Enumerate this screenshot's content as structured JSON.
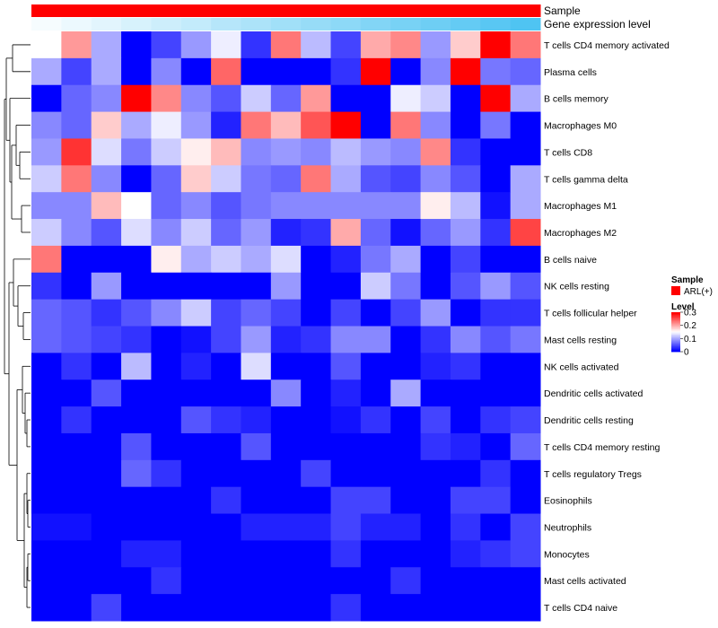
{
  "chart_data": {
    "type": "heatmap",
    "title": "",
    "xlabel": "",
    "ylabel": "",
    "annotation_tracks": [
      {
        "name": "Sample",
        "kind": "categorical",
        "color": "#ff0000"
      },
      {
        "name": "Gene expression level",
        "kind": "gradient",
        "colors": [
          "#ffffff",
          "#4fc4f2"
        ]
      }
    ],
    "rows": [
      "T cells CD4 memory activated",
      "Plasma cells",
      "B cells memory",
      "Macrophages M0",
      "T cells CD8",
      "T cells gamma delta",
      "Macrophages M1",
      "Macrophages M2",
      "B cells naive",
      "NK cells resting",
      "T cells follicular helper",
      "Mast cells resting",
      "NK cells activated",
      "Dendritic cells activated",
      "Dendritic cells resting",
      "T cells CD4 memory resting",
      "T cells regulatory  Tregs",
      "Eosinophils",
      "Neutrophils",
      "Monocytes",
      "Mast cells activated",
      "T cells CD4 naive"
    ],
    "values": [
      [
        0.15,
        0.21,
        0.1,
        0.0,
        0.04,
        0.09,
        0.14,
        0.03,
        0.23,
        0.11,
        0.04,
        0.2,
        0.22,
        0.09,
        0.18,
        0.3,
        0.23
      ],
      [
        0.1,
        0.04,
        0.1,
        0.0,
        0.08,
        0.0,
        0.24,
        0.0,
        0.0,
        0.0,
        0.03,
        0.3,
        0.0,
        0.08,
        0.3,
        0.07,
        0.06
      ],
      [
        0.0,
        0.06,
        0.08,
        0.3,
        0.22,
        0.08,
        0.05,
        0.12,
        0.06,
        0.21,
        0.0,
        0.0,
        0.14,
        0.12,
        0.0,
        0.3,
        0.1
      ],
      [
        0.08,
        0.06,
        0.18,
        0.1,
        0.14,
        0.09,
        0.02,
        0.23,
        0.19,
        0.25,
        0.3,
        0.0,
        0.23,
        0.08,
        0.0,
        0.07,
        0.0
      ],
      [
        0.09,
        0.27,
        0.13,
        0.07,
        0.12,
        0.16,
        0.19,
        0.08,
        0.09,
        0.08,
        0.11,
        0.09,
        0.08,
        0.22,
        0.03,
        0.0,
        0.0
      ],
      [
        0.12,
        0.23,
        0.08,
        0.0,
        0.06,
        0.18,
        0.12,
        0.07,
        0.06,
        0.23,
        0.1,
        0.05,
        0.04,
        0.08,
        0.05,
        0.0,
        0.1
      ],
      [
        0.08,
        0.08,
        0.19,
        0.15,
        0.06,
        0.08,
        0.05,
        0.07,
        0.08,
        0.08,
        0.08,
        0.08,
        0.08,
        0.16,
        0.11,
        0.01,
        0.1
      ],
      [
        0.12,
        0.08,
        0.05,
        0.13,
        0.08,
        0.12,
        0.06,
        0.09,
        0.02,
        0.03,
        0.2,
        0.06,
        0.01,
        0.06,
        0.09,
        0.03,
        0.26
      ],
      [
        0.23,
        0.0,
        0.0,
        0.0,
        0.16,
        0.1,
        0.12,
        0.1,
        0.13,
        0.0,
        0.02,
        0.07,
        0.1,
        0.0,
        0.04,
        0.0,
        0.0
      ],
      [
        0.03,
        0.0,
        0.09,
        0.0,
        0.0,
        0.0,
        0.0,
        0.0,
        0.09,
        0.0,
        0.0,
        0.12,
        0.07,
        0.0,
        0.05,
        0.09,
        0.05
      ],
      [
        0.06,
        0.05,
        0.03,
        0.05,
        0.08,
        0.12,
        0.04,
        0.06,
        0.04,
        0.0,
        0.04,
        0.0,
        0.04,
        0.09,
        0.0,
        0.03,
        0.03
      ],
      [
        0.06,
        0.05,
        0.04,
        0.03,
        0.0,
        0.01,
        0.04,
        0.09,
        0.02,
        0.03,
        0.08,
        0.08,
        0.0,
        0.03,
        0.08,
        0.05,
        0.07
      ],
      [
        0.0,
        0.03,
        0.0,
        0.11,
        0.0,
        0.02,
        0.0,
        0.13,
        0.0,
        0.0,
        0.05,
        0.0,
        0.0,
        0.02,
        0.03,
        0.0,
        0.0
      ],
      [
        0.0,
        0.0,
        0.05,
        0.0,
        0.0,
        0.0,
        0.0,
        0.0,
        0.08,
        0.0,
        0.02,
        0.0,
        0.1,
        0.0,
        0.0,
        0.0,
        0.0
      ],
      [
        0.0,
        0.03,
        0.0,
        0.0,
        0.0,
        0.05,
        0.03,
        0.02,
        0.0,
        0.0,
        0.01,
        0.03,
        0.0,
        0.04,
        0.0,
        0.03,
        0.04
      ],
      [
        0.0,
        0.0,
        0.0,
        0.05,
        0.0,
        0.0,
        0.0,
        0.05,
        0.0,
        0.0,
        0.0,
        0.0,
        0.0,
        0.03,
        0.02,
        0.0,
        0.06
      ],
      [
        0.0,
        0.0,
        0.0,
        0.06,
        0.03,
        0.0,
        0.0,
        0.0,
        0.0,
        0.04,
        0.0,
        0.0,
        0.0,
        0.0,
        0.0,
        0.03,
        0.0
      ],
      [
        0.0,
        0.0,
        0.0,
        0.0,
        0.0,
        0.0,
        0.03,
        0.0,
        0.0,
        0.0,
        0.04,
        0.04,
        0.0,
        0.0,
        0.04,
        0.04,
        0.0
      ],
      [
        0.01,
        0.01,
        0.0,
        0.0,
        0.0,
        0.0,
        0.0,
        0.02,
        0.02,
        0.02,
        0.04,
        0.02,
        0.02,
        0.0,
        0.03,
        0.0,
        0.04
      ],
      [
        0.0,
        0.0,
        0.0,
        0.02,
        0.02,
        0.0,
        0.0,
        0.0,
        0.0,
        0.0,
        0.03,
        0.0,
        0.0,
        0.0,
        0.02,
        0.03,
        0.04
      ],
      [
        0.0,
        0.0,
        0.0,
        0.0,
        0.03,
        0.0,
        0.0,
        0.0,
        0.0,
        0.0,
        0.0,
        0.0,
        0.03,
        0.0,
        0.0,
        0.0,
        0.0
      ],
      [
        0.0,
        0.0,
        0.04,
        0.0,
        0.0,
        0.0,
        0.0,
        0.0,
        0.0,
        0.0,
        0.03,
        0.0,
        0.0,
        0.0,
        0.0,
        0.0,
        0.0
      ]
    ],
    "expression_level": [
      0.02,
      0.06,
      0.1,
      0.14,
      0.18,
      0.22,
      0.27,
      0.31,
      0.35,
      0.39,
      0.43,
      0.47,
      0.51,
      0.55,
      0.59,
      0.63,
      0.67
    ],
    "color_scale": {
      "min": 0,
      "max": 0.3,
      "low": "#0000ff",
      "mid": "#ffffff",
      "high": "#ff0000"
    },
    "legend": {
      "sample_title": "Sample",
      "sample_entry": "ARL(+)",
      "level_title": "Level",
      "ticks": [
        "0.3",
        "0.2",
        "0.1",
        "0"
      ],
      "tick_values": [
        0.3,
        0.2,
        0.1,
        0
      ],
      "position": "right"
    },
    "row_dendrogram_order": [
      0,
      1,
      2,
      3,
      4,
      5,
      6,
      7,
      8,
      9,
      10,
      11,
      12,
      13,
      14,
      15,
      16,
      17,
      18,
      19,
      20,
      21
    ]
  }
}
